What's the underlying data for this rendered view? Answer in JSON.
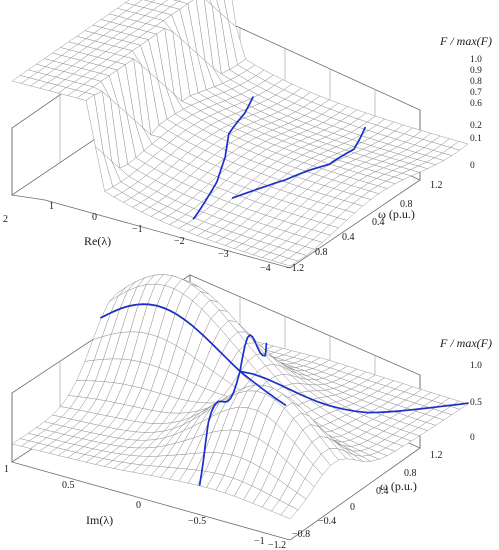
{
  "chart_data": [
    {
      "type": "surface3d",
      "title": "",
      "zlabel": "F / max(F)",
      "xlabel": "Re(λ)",
      "ylabel": "ω (p.u.)",
      "x_ticks": [
        "2",
        "1",
        "0",
        "−1",
        "−2",
        "−3",
        "−4"
      ],
      "y_ticks": [
        "1.2",
        "0.8",
        "0.4",
        "0.4",
        "0.8",
        "−1.2"
      ],
      "z_ticks": [
        "1.0",
        "0.9",
        "0.8",
        "0.7",
        "0.6",
        "0.2",
        "0.1",
        "0"
      ],
      "xlim": [
        -4,
        2
      ],
      "ylim": [
        -1.2,
        1.2
      ],
      "zlim": [
        0,
        1
      ],
      "series": [
        {
          "values": [
            [
              -1.6,
              -1.0
            ],
            [
              -1.3,
              -0.5
            ],
            [
              -1.0,
              -0.2
            ],
            [
              -0.6,
              0.1
            ],
            [
              -0.3,
              0.5
            ],
            [
              0.0,
              0.8
            ]
          ]
        },
        {
          "values": [
            [
              -1.8,
              -0.6
            ],
            [
              -2.3,
              -0.2
            ],
            [
              -2.6,
              0.2
            ],
            [
              -2.5,
              0.6
            ],
            [
              -2.1,
              1.0
            ]
          ]
        }
      ]
    },
    {
      "type": "surface3d",
      "title": "",
      "zlabel": "F / max(F)",
      "xlabel": "Im(λ)",
      "ylabel": "ω (p.u.)",
      "x_ticks": [
        "1",
        "0.5",
        "0",
        "−0.5",
        "−1"
      ],
      "y_ticks": [
        "1.2",
        "0.8",
        "0.4",
        "0",
        "−0.4",
        "−0.8",
        "−1.2"
      ],
      "z_ticks": [
        "1.0",
        "0.5",
        "0"
      ],
      "xlim": [
        -1,
        1
      ],
      "ylim": [
        -1.2,
        1.2
      ],
      "zlim": [
        0,
        1
      ],
      "series": [
        {
          "values": [
            [
              1.0,
              0.0
            ],
            [
              0.5,
              0.0
            ],
            [
              0.0,
              0.0
            ],
            [
              -0.3,
              0.05
            ]
          ]
        },
        {
          "values": [
            [
              0.0,
              0.0
            ],
            [
              0.3,
              0.9
            ],
            [
              0.45,
              1.2
            ]
          ]
        },
        {
          "values": [
            [
              0.0,
              0.0
            ],
            [
              -0.2,
              -0.8
            ],
            [
              -0.35,
              -1.2
            ]
          ]
        },
        {
          "values": [
            [
              0.0,
              0.0
            ],
            [
              -0.6,
              0.6
            ],
            [
              -1.0,
              1.2
            ]
          ]
        }
      ]
    }
  ]
}
